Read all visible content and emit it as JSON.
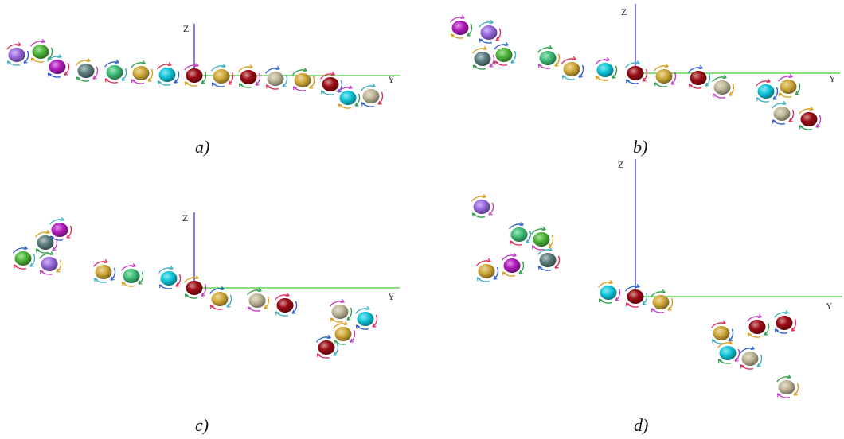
{
  "figure": {
    "axis_labels": {
      "z": "Z",
      "y": "Y"
    },
    "colors": {
      "z_axis": "#2a2ae0",
      "y_axis": "#3ecf2a",
      "violet": "#9b6ae0",
      "green": "#4cb83a",
      "magenta": "#b41cc0",
      "slate": "#5e8080",
      "mint": "#3fc078",
      "gold": "#d2aa3a",
      "cyan": "#10c8dc",
      "darkred": "#9c0c14",
      "beige": "#c0b898",
      "arrow_palette": [
        "#e0305a",
        "#30a050",
        "#3060d0",
        "#d8a020",
        "#40b0c0",
        "#c040c0"
      ]
    },
    "panels": [
      {
        "id": "a",
        "caption": "a)",
        "spheres": [
          {
            "color": "violet"
          },
          {
            "color": "green"
          },
          {
            "color": "magenta"
          },
          {
            "color": "slate"
          },
          {
            "color": "mint"
          },
          {
            "color": "gold"
          },
          {
            "color": "cyan"
          },
          {
            "color": "darkred"
          },
          {
            "color": "gold"
          },
          {
            "color": "darkred"
          },
          {
            "color": "beige"
          },
          {
            "color": "gold"
          },
          {
            "color": "darkred"
          },
          {
            "color": "cyan"
          },
          {
            "color": "beige"
          }
        ]
      },
      {
        "id": "b",
        "caption": "b)",
        "spheres": [
          {
            "color": "magenta"
          },
          {
            "color": "violet"
          },
          {
            "color": "slate"
          },
          {
            "color": "green"
          },
          {
            "color": "mint"
          },
          {
            "color": "gold"
          },
          {
            "color": "cyan"
          },
          {
            "color": "darkred"
          },
          {
            "color": "gold"
          },
          {
            "color": "darkred"
          },
          {
            "color": "beige"
          },
          {
            "color": "cyan"
          },
          {
            "color": "gold"
          },
          {
            "color": "beige"
          },
          {
            "color": "darkred"
          }
        ]
      },
      {
        "id": "c",
        "caption": "c)",
        "spheres": [
          {
            "color": "magenta"
          },
          {
            "color": "slate"
          },
          {
            "color": "green"
          },
          {
            "color": "violet"
          },
          {
            "color": "gold"
          },
          {
            "color": "mint"
          },
          {
            "color": "cyan"
          },
          {
            "color": "darkred"
          },
          {
            "color": "gold"
          },
          {
            "color": "beige"
          },
          {
            "color": "darkred"
          },
          {
            "color": "beige"
          },
          {
            "color": "cyan"
          },
          {
            "color": "gold"
          },
          {
            "color": "darkred"
          }
        ]
      },
      {
        "id": "d",
        "caption": "d)",
        "spheres": [
          {
            "color": "violet"
          },
          {
            "color": "mint"
          },
          {
            "color": "green"
          },
          {
            "color": "gold"
          },
          {
            "color": "magenta"
          },
          {
            "color": "slate"
          },
          {
            "color": "cyan"
          },
          {
            "color": "darkred"
          },
          {
            "color": "gold"
          },
          {
            "color": "gold"
          },
          {
            "color": "darkred"
          },
          {
            "color": "darkred"
          },
          {
            "color": "cyan"
          },
          {
            "color": "beige"
          },
          {
            "color": "beige"
          }
        ]
      }
    ]
  }
}
